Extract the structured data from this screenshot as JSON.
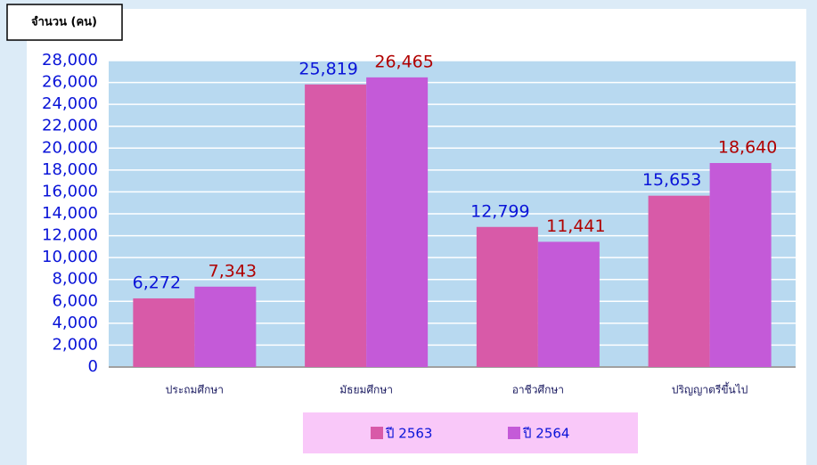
{
  "chart_data": {
    "type": "bar",
    "y_label": "จำนวน (คน)",
    "categories": [
      "ประถมศึกษา",
      "มัธยมศึกษา",
      "อาชีวศึกษา",
      "ปริญญาตรีขึ้นไป"
    ],
    "series": [
      {
        "name": "ปี 2563",
        "color": "#d85aa8",
        "label_color": "#0a14d8",
        "values": [
          6272,
          25819,
          12799,
          15653
        ],
        "value_labels": [
          "6,272",
          "25,819",
          "12,799",
          "15,653"
        ]
      },
      {
        "name": "ปี 2564",
        "color": "#c45ad8",
        "label_color": "#b00000",
        "values": [
          7343,
          26465,
          11441,
          18640
        ],
        "value_labels": [
          "7,343",
          "26,465",
          "11,441",
          "18,640"
        ]
      }
    ],
    "ylim": [
      0,
      28000
    ],
    "yticks": [
      0,
      {
        "value": 2000,
        "label": "2,000"
      },
      {
        "value": 4000,
        "label": "4,000"
      },
      {
        "value": 6000,
        "label": "6,000"
      },
      {
        "value": 8000,
        "label": "8,000"
      },
      {
        "value": 10000,
        "label": "10,000"
      },
      {
        "value": 12000,
        "label": "12,000"
      },
      {
        "value": 14000,
        "label": "14,000"
      },
      {
        "value": 16000,
        "label": "16,000"
      },
      {
        "value": 18000,
        "label": "18,000"
      },
      {
        "value": 20000,
        "label": "20,000"
      },
      {
        "value": 22000,
        "label": "22,000"
      },
      {
        "value": 24000,
        "label": "24,000"
      },
      {
        "value": 26000,
        "label": "26,000"
      },
      {
        "value": 28000,
        "label": "28,000"
      }
    ],
    "grid": true
  }
}
